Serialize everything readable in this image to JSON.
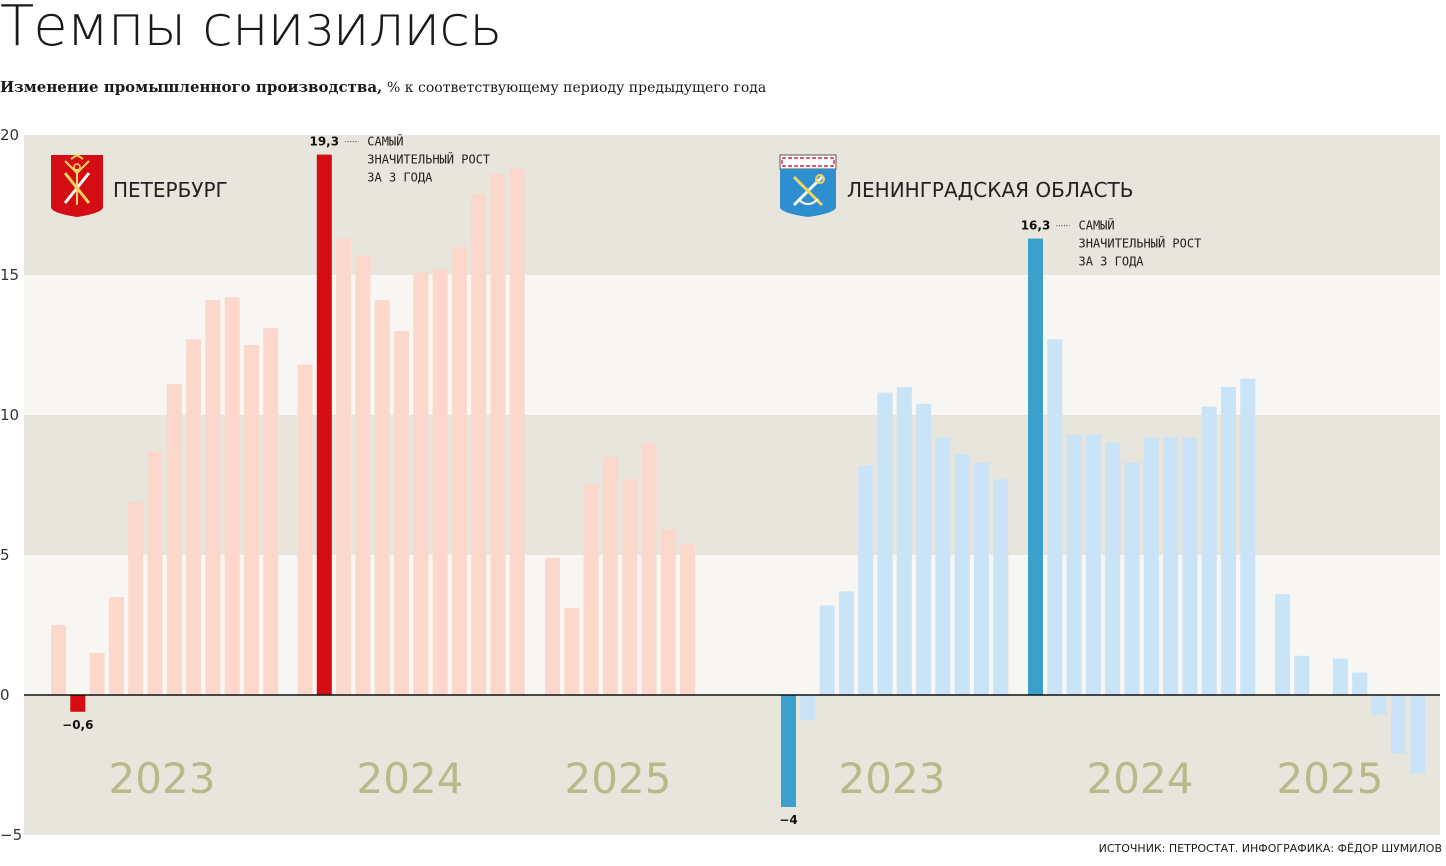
{
  "title": "Темпы снизились",
  "subtitle_bold": "Изменение промышленного производства,",
  "subtitle_rest": "% к соответствующему периоду предыдущего года",
  "source": "ИСТОЧНИК: ПЕТРОСТАТ. ИНФОГРАФИКА: ФЁДОР ШУМИЛОВ",
  "colors": {
    "spb_light": "#fbd8cb",
    "spb_accent": "#d40c14",
    "lo_light": "#c9e3f7",
    "lo_accent": "#3ca0cc",
    "band_dark": "#e8e5dc",
    "band_light": "#f7f6f2",
    "year_text": "#b9b98a"
  },
  "chart_data": {
    "type": "bar",
    "ylim": [
      -5,
      20
    ],
    "yticks": [
      "−5",
      "0",
      "5",
      "10",
      "15",
      "20"
    ],
    "ytick_values": [
      -5,
      0,
      5,
      10,
      15,
      20
    ],
    "panels": [
      {
        "name": "ПЕТЕРБУРГ",
        "icon": "spb-coat-of-arms-icon",
        "years": [
          "2023",
          "2024",
          "2025"
        ],
        "values": [
          [
            2.5,
            -0.6,
            1.5,
            3.5,
            6.9,
            8.7,
            11.1,
            12.7,
            14.1,
            14.2,
            12.5,
            13.1
          ],
          [
            11.8,
            19.3,
            16.3,
            15.7,
            14.1,
            13.0,
            15.1,
            15.2,
            16.0,
            17.9,
            18.6,
            18.8
          ],
          [
            4.9,
            3.1,
            7.5,
            8.5,
            7.7,
            9.0,
            5.9,
            5.4
          ]
        ],
        "highlights": [
          {
            "year_index": 0,
            "bar_index": 1,
            "label": "−0,6"
          },
          {
            "year_index": 1,
            "bar_index": 1,
            "label": "19,3",
            "note": [
              "САМЫЙ",
              "ЗНАЧИТЕЛЬНЫЙ РОСТ",
              "ЗА 3 ГОДА"
            ]
          }
        ]
      },
      {
        "name": "ЛЕНИНГРАДСКАЯ ОБЛАСТЬ",
        "icon": "leningrad-oblast-coat-of-arms-icon",
        "years": [
          "2023",
          "2024",
          "2025"
        ],
        "values": [
          [
            -4.0,
            -0.9,
            3.2,
            3.7,
            8.2,
            10.8,
            11.0,
            10.4,
            9.2,
            8.6,
            8.3,
            7.7
          ],
          [
            16.3,
            12.7,
            9.3,
            9.3,
            9.0,
            8.3,
            9.2,
            9.2,
            9.2,
            10.3,
            11.0,
            11.3
          ],
          [
            3.6,
            1.4,
            null,
            1.3,
            0.8,
            -0.7,
            -2.1,
            -2.8
          ]
        ],
        "highlights": [
          {
            "year_index": 0,
            "bar_index": 0,
            "label": "−4"
          },
          {
            "year_index": 1,
            "bar_index": 0,
            "label": "16,3",
            "note": [
              "САМЫЙ",
              "ЗНАЧИТЕЛЬНЫЙ РОСТ",
              "ЗА 3 ГОДА"
            ]
          }
        ]
      }
    ]
  }
}
